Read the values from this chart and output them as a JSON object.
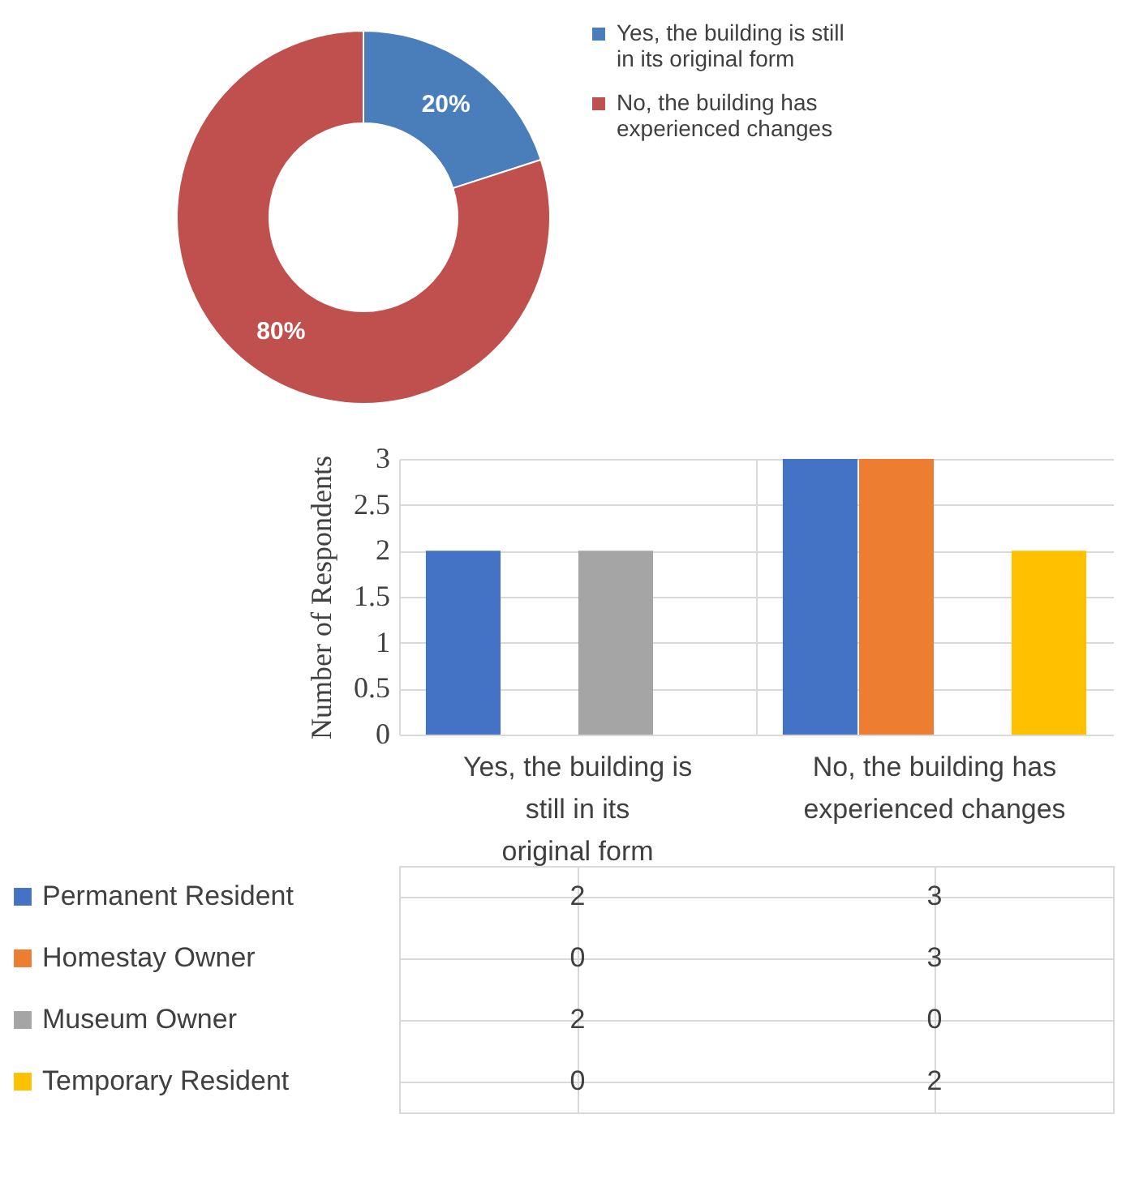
{
  "chart_data": [
    {
      "type": "donut",
      "categories": [
        "Yes, the building is still in its original form",
        "No, the building has experienced changes"
      ],
      "values": [
        20,
        80
      ],
      "colors": [
        "#4a7ebb",
        "#c0504d"
      ],
      "value_labels": [
        "20%",
        "80%"
      ],
      "legend": "right"
    },
    {
      "type": "bar",
      "ylabel": "Number of Respondents",
      "categories": [
        "Yes, the building is still in its original form",
        "No, the building has experienced changes"
      ],
      "series": [
        {
          "name": "Permanent Resident",
          "color": "#4472c4",
          "values": [
            2,
            3
          ]
        },
        {
          "name": "Homestay Owner",
          "color": "#ed7d31",
          "values": [
            0,
            3
          ]
        },
        {
          "name": "Museum Owner",
          "color": "#a5a5a5",
          "values": [
            2,
            0
          ]
        },
        {
          "name": "Temporary Resident",
          "color": "#ffc000",
          "values": [
            0,
            2
          ]
        }
      ],
      "ylim": [
        0,
        3
      ],
      "yticks": [
        0,
        0.5,
        1,
        1.5,
        2,
        2.5,
        3
      ],
      "grid": "y",
      "data_labels": true,
      "legend": "bottom"
    }
  ]
}
